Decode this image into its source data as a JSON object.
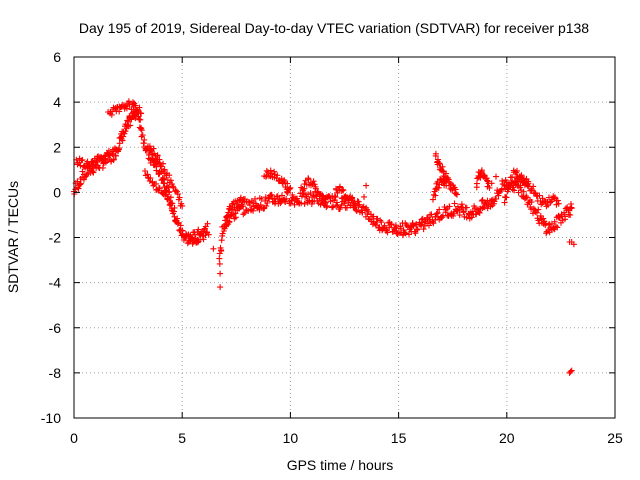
{
  "chart_data": {
    "type": "scatter",
    "title": "Day 195 of 2019, Sidereal Day-to-day VTEC variation (SDTVAR) for receiver p138",
    "xlabel": "GPS time / hours",
    "ylabel": "SDTVAR / TECUs",
    "xlim": [
      0,
      25
    ],
    "ylim": [
      -10,
      6
    ],
    "xticks": [
      "0",
      "5",
      "10",
      "15",
      "20",
      "25"
    ],
    "xtick_values": [
      0,
      5,
      10,
      15,
      20,
      25
    ],
    "yticks": [
      "-10",
      "-8",
      "-6",
      "-4",
      "-2",
      "0",
      "2",
      "4",
      "6"
    ],
    "ytick_values": [
      -10,
      -8,
      -6,
      -4,
      -2,
      0,
      2,
      4,
      6
    ],
    "grid": true,
    "marker": "plus",
    "colors": {
      "series": "#ff0000",
      "grid": "#a0a0a0",
      "frame": "#000000"
    },
    "series": [
      {
        "name": "SDTVAR",
        "trace": [
          [
            0.0,
            0.0
          ],
          [
            0.3,
            0.6
          ],
          [
            0.6,
            0.9
          ],
          [
            0.9,
            1.1
          ],
          [
            1.2,
            1.3
          ],
          [
            1.5,
            1.4
          ],
          [
            1.8,
            1.6
          ],
          [
            2.0,
            2.0
          ],
          [
            2.2,
            2.4
          ],
          [
            2.4,
            2.8
          ],
          [
            2.6,
            3.2
          ],
          [
            2.8,
            3.6
          ],
          [
            3.0,
            3.4
          ],
          [
            3.2,
            2.4
          ],
          [
            3.4,
            1.8
          ],
          [
            3.6,
            1.4
          ],
          [
            3.8,
            1.2
          ],
          [
            4.0,
            0.9
          ],
          [
            4.2,
            0.4
          ],
          [
            4.4,
            -0.2
          ],
          [
            4.6,
            -0.8
          ],
          [
            4.8,
            -1.4
          ],
          [
            5.0,
            -1.8
          ],
          [
            5.2,
            -2.0
          ],
          [
            5.4,
            -2.1
          ],
          [
            5.6,
            -2.0
          ],
          [
            5.8,
            -1.9
          ],
          [
            6.0,
            -1.8
          ],
          [
            6.2,
            -1.6
          ],
          [
            6.7,
            -3.2
          ],
          [
            6.9,
            -1.5
          ],
          [
            7.2,
            -1.1
          ],
          [
            7.5,
            -0.9
          ],
          [
            7.8,
            -0.7
          ],
          [
            8.1,
            -0.6
          ],
          [
            8.4,
            -0.5
          ],
          [
            8.7,
            -0.5
          ],
          [
            9.0,
            -0.4
          ],
          [
            9.3,
            -0.3
          ],
          [
            9.6,
            -0.3
          ],
          [
            9.9,
            -0.2
          ],
          [
            10.2,
            -0.3
          ],
          [
            10.5,
            -0.3
          ],
          [
            10.8,
            -0.3
          ],
          [
            11.1,
            -0.2
          ],
          [
            11.4,
            -0.3
          ],
          [
            11.7,
            -0.4
          ],
          [
            12.0,
            -0.4
          ],
          [
            12.3,
            -0.5
          ],
          [
            12.6,
            -0.4
          ],
          [
            12.9,
            -0.5
          ],
          [
            13.2,
            -0.6
          ],
          [
            13.5,
            -0.9
          ],
          [
            13.8,
            -1.2
          ],
          [
            14.1,
            -1.4
          ],
          [
            14.4,
            -1.5
          ],
          [
            14.7,
            -1.6
          ],
          [
            15.0,
            -1.6
          ],
          [
            15.3,
            -1.6
          ],
          [
            15.6,
            -1.6
          ],
          [
            15.9,
            -1.5
          ],
          [
            16.2,
            -1.4
          ],
          [
            16.5,
            -1.2
          ],
          [
            16.8,
            -1.0
          ],
          [
            17.1,
            -0.9
          ],
          [
            17.4,
            -0.8
          ],
          [
            17.7,
            -0.7
          ],
          [
            18.0,
            -0.8
          ],
          [
            18.3,
            -0.9
          ],
          [
            18.6,
            -0.8
          ],
          [
            18.9,
            -0.6
          ],
          [
            19.2,
            -0.5
          ],
          [
            19.5,
            -0.2
          ],
          [
            19.8,
            0.3
          ],
          [
            20.1,
            0.5
          ],
          [
            20.4,
            0.3
          ],
          [
            20.7,
            0.1
          ],
          [
            21.0,
            -0.3
          ],
          [
            21.3,
            -0.8
          ],
          [
            21.6,
            -1.3
          ],
          [
            21.9,
            -1.6
          ],
          [
            22.2,
            -1.5
          ],
          [
            22.5,
            -1.1
          ],
          [
            22.8,
            -0.8
          ],
          [
            23.0,
            -0.7
          ]
        ],
        "branches": [
          [
            [
              1.6,
              3.6
            ],
            [
              1.9,
              3.6
            ],
            [
              2.2,
              3.7
            ],
            [
              2.5,
              3.9
            ],
            [
              2.8,
              3.8
            ],
            [
              3.1,
              3.5
            ]
          ],
          [
            [
              0.1,
              1.4
            ],
            [
              0.4,
              1.3
            ],
            [
              0.7,
              1.2
            ],
            [
              1.0,
              1.4
            ],
            [
              1.4,
              1.6
            ],
            [
              1.8,
              1.9
            ]
          ],
          [
            [
              3.5,
              2.0
            ],
            [
              3.8,
              1.6
            ],
            [
              4.1,
              1.2
            ],
            [
              4.4,
              0.6
            ],
            [
              4.7,
              0.0
            ],
            [
              5.0,
              -0.6
            ]
          ],
          [
            [
              3.3,
              0.8
            ],
            [
              3.6,
              0.5
            ],
            [
              3.9,
              0.2
            ],
            [
              4.2,
              -0.1
            ],
            [
              4.5,
              -0.5
            ]
          ],
          [
            [
              8.8,
              0.8
            ],
            [
              9.1,
              0.9
            ],
            [
              9.4,
              0.7
            ],
            [
              9.7,
              0.4
            ],
            [
              10.0,
              0.2
            ]
          ],
          [
            [
              10.5,
              0.1
            ],
            [
              10.8,
              0.5
            ],
            [
              11.1,
              0.3
            ],
            [
              11.4,
              -0.2
            ],
            [
              11.7,
              -0.6
            ]
          ],
          [
            [
              12.1,
              0.2
            ],
            [
              12.4,
              0.0
            ],
            [
              12.7,
              -0.3
            ],
            [
              13.0,
              -0.6
            ]
          ],
          [
            [
              16.7,
              1.6
            ],
            [
              16.9,
              1.2
            ],
            [
              17.1,
              0.8
            ],
            [
              17.3,
              0.5
            ],
            [
              17.5,
              0.2
            ],
            [
              17.7,
              -0.1
            ]
          ],
          [
            [
              16.6,
              -0.3
            ],
            [
              16.8,
              0.3
            ],
            [
              17.0,
              0.5
            ],
            [
              17.2,
              0.3
            ]
          ],
          [
            [
              18.6,
              0.3
            ],
            [
              18.8,
              0.9
            ],
            [
              19.0,
              0.7
            ],
            [
              19.2,
              0.2
            ]
          ],
          [
            [
              20.3,
              0.9
            ],
            [
              20.6,
              0.7
            ],
            [
              20.9,
              0.4
            ],
            [
              21.2,
              0.1
            ],
            [
              21.5,
              -0.3
            ],
            [
              21.8,
              -0.5
            ],
            [
              22.1,
              -0.3
            ],
            [
              22.4,
              -0.5
            ]
          ],
          [
            [
              19.9,
              -0.3
            ],
            [
              20.1,
              0.2
            ],
            [
              20.4,
              0.5
            ],
            [
              20.7,
              0.6
            ],
            [
              21.0,
              0.4
            ]
          ],
          [
            [
              7.0,
              -1.4
            ],
            [
              7.1,
              -1.0
            ],
            [
              7.3,
              -0.6
            ],
            [
              7.6,
              -0.4
            ],
            [
              7.9,
              -0.3
            ]
          ]
        ],
        "isolated": [
          [
            6.75,
            -4.2
          ],
          [
            6.75,
            -3.6
          ],
          [
            6.8,
            -2.6
          ],
          [
            13.5,
            0.3
          ],
          [
            13.4,
            -0.2
          ],
          [
            15.2,
            -1.9
          ],
          [
            18.7,
            0.9
          ],
          [
            19.5,
            0.7
          ],
          [
            19.3,
            0.4
          ],
          [
            22.9,
            -2.2
          ],
          [
            23.0,
            -2.2
          ],
          [
            23.1,
            -2.3
          ],
          [
            22.9,
            -8.0
          ],
          [
            23.0,
            -7.9
          ],
          [
            22.95,
            -7.95
          ]
        ]
      }
    ]
  }
}
